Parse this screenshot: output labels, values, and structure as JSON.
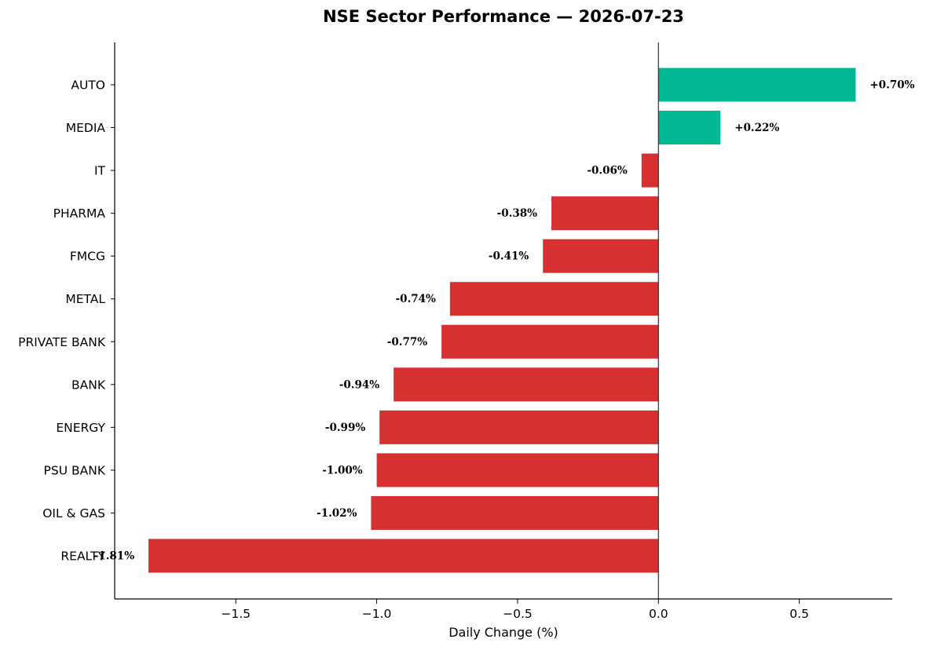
{
  "chart_data": {
    "type": "bar",
    "orientation": "horizontal",
    "title": "NSE Sector Performance — 2026-07-23",
    "xlabel": "Daily Change (%)",
    "ylabel": "",
    "xlim": [
      -1.93,
      0.83
    ],
    "x_ticks": [
      -1.5,
      -1.0,
      -0.5,
      0.0,
      0.5
    ],
    "x_tick_labels": [
      "−1.5",
      "−1.0",
      "−0.5",
      "0.0",
      "0.5"
    ],
    "grid": false,
    "legend": "none",
    "colors": {
      "positive": "#00b894",
      "negative": "#d63031",
      "zero_line": "#333333"
    },
    "categories": [
      "AUTO",
      "MEDIA",
      "IT",
      "PHARMA",
      "FMCG",
      "METAL",
      "PRIVATE BANK",
      "BANK",
      "ENERGY",
      "PSU BANK",
      "OIL & GAS",
      "REALTY"
    ],
    "values": [
      0.7,
      0.22,
      -0.06,
      -0.38,
      -0.41,
      -0.74,
      -0.77,
      -0.94,
      -0.99,
      -1.0,
      -1.02,
      -1.81
    ],
    "value_labels": [
      "+0.70%",
      "+0.22%",
      "-0.06%",
      "-0.38%",
      "-0.41%",
      "-0.74%",
      "-0.77%",
      "-0.94%",
      "-0.99%",
      "-1.00%",
      "-1.02%",
      "-1.81%"
    ]
  }
}
